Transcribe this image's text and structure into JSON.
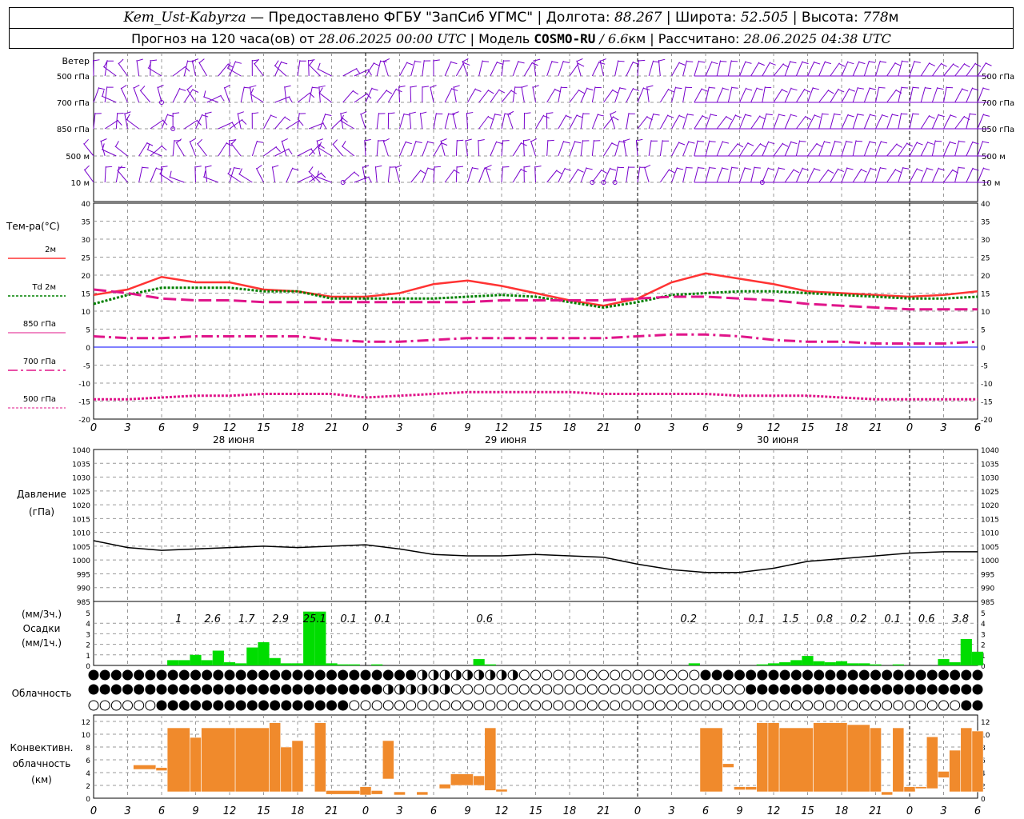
{
  "header": {
    "station": "Kem_Ust-Kabyrza",
    "provider": "Предоставлено ФГБУ \"ЗапСиб УГМС\"",
    "lon_label": "Долгота:",
    "lon": "88.267",
    "lat_label": "Широта:",
    "lat": "52.505",
    "alt_label": "Высота:",
    "alt": "778",
    "alt_unit": "м",
    "forecast_label": "Прогноз на 120 часа(ов) от",
    "forecast_from": "28.06.2025 00:00 UTC",
    "model_label": "Модель",
    "model": "COSMO-RU",
    "model_res": "/ 6.6",
    "model_res_unit": "км",
    "calc_label": "Рассчитано:",
    "calc_time": "28.06.2025 04:38 UTC"
  },
  "colors": {
    "t2m": "#ff3333",
    "td": "#008000",
    "t850": "#e0158a",
    "t700": "#e0158a",
    "t500": "#e0158a",
    "pressure": "#000000",
    "precip": "#00dd00",
    "convective": "#f08a2c",
    "wind": "#7700cc",
    "zero": "#0000ff"
  },
  "hours": [
    "0",
    "3",
    "6",
    "9",
    "12",
    "15",
    "18",
    "21",
    "0",
    "3",
    "6",
    "9",
    "12",
    "15",
    "18",
    "21",
    "0",
    "3",
    "6",
    "9",
    "12",
    "15",
    "18",
    "21",
    "0",
    "3",
    "6"
  ],
  "days": [
    "28 июня",
    "29 июня",
    "30 июня"
  ],
  "wind": {
    "title": "Ветер",
    "levels": [
      "500 гПа",
      "700 гПа",
      "850 гПа",
      "500 м",
      "10  м"
    ]
  },
  "temp": {
    "title": "Тем-ра(°C)",
    "legend": [
      "2м",
      "Td  2м",
      "850 гПа",
      "700 гПа",
      "500 гПа"
    ],
    "ticks": [
      "40",
      "35",
      "30",
      "25",
      "20",
      "15",
      "10",
      "5",
      "0",
      "-5",
      "-10",
      "-15",
      "-20"
    ]
  },
  "pressure": {
    "title1": "Давление",
    "title2": "(гПа)",
    "ticks": [
      "1040",
      "1035",
      "1030",
      "1025",
      "1020",
      "1015",
      "1010",
      "1005",
      "1000",
      "995",
      "990",
      "985"
    ]
  },
  "precip": {
    "title1": "(мм/3ч.)",
    "title2": "Осадки",
    "title3": "(мм/1ч.)",
    "ticks": [
      "5",
      "4",
      "3",
      "2",
      "1",
      "0"
    ],
    "totals": [
      {
        "h": 7.5,
        "v": "1"
      },
      {
        "h": 10.5,
        "v": "2.6"
      },
      {
        "h": 13.5,
        "v": "1.7"
      },
      {
        "h": 16.5,
        "v": "2.9"
      },
      {
        "h": 19.5,
        "v": "25.1"
      },
      {
        "h": 22.5,
        "v": "0.1"
      },
      {
        "h": 25.5,
        "v": "0.1"
      },
      {
        "h": 34.5,
        "v": "0.6"
      },
      {
        "h": 52.5,
        "v": "0.2"
      },
      {
        "h": 58.5,
        "v": "0.1"
      },
      {
        "h": 61.5,
        "v": "1.5"
      },
      {
        "h": 64.5,
        "v": "0.8"
      },
      {
        "h": 67.5,
        "v": "0.2"
      },
      {
        "h": 70.5,
        "v": "0.1"
      },
      {
        "h": 73.5,
        "v": "0.6"
      },
      {
        "h": 76.5,
        "v": "3.8"
      }
    ]
  },
  "cloud": {
    "title": "Облачность"
  },
  "conv": {
    "title1": "Конвективн.",
    "title2": "облачность",
    "title3": "(км)",
    "ticks": [
      "12",
      "10",
      "8",
      "6",
      "4",
      "2",
      "0"
    ]
  },
  "chart_data": [
    {
      "type": "line",
      "name": "temperature",
      "x_hours": [
        0,
        3,
        6,
        9,
        12,
        15,
        18,
        21,
        24,
        27,
        30,
        33,
        36,
        39,
        42,
        45,
        48,
        51,
        54,
        57,
        60,
        63,
        66,
        69,
        72,
        75,
        78
      ],
      "ylim": [
        -20,
        40
      ],
      "series": [
        {
          "name": "2м",
          "values": [
            14.5,
            16,
            19.5,
            18,
            18,
            16,
            15.5,
            14,
            14,
            15,
            17.5,
            18.5,
            17,
            15,
            13,
            11.5,
            13.5,
            18,
            20.5,
            19,
            17.5,
            15.5,
            15,
            14.5,
            14,
            14.5,
            15.5
          ]
        },
        {
          "name": "Td 2м",
          "values": [
            12,
            14.5,
            16.5,
            16.5,
            16.5,
            15.5,
            15.5,
            13.5,
            13.5,
            13.5,
            13.5,
            14,
            14.5,
            14,
            12.5,
            11,
            12.5,
            14.5,
            15,
            15.5,
            15.5,
            15,
            14.5,
            14,
            13.5,
            13.5,
            14
          ]
        },
        {
          "name": "850 гПа",
          "values": [
            16,
            15,
            13.5,
            13,
            13,
            12.5,
            12.5,
            12.5,
            12.5,
            12.5,
            12.5,
            12.5,
            13,
            13,
            13,
            13,
            13.5,
            14,
            14,
            13.5,
            13,
            12,
            11.5,
            11,
            10.5,
            10.5,
            10.5
          ]
        },
        {
          "name": "700 гПа",
          "values": [
            3,
            2.5,
            2.5,
            3,
            3,
            3,
            3,
            2,
            1.5,
            1.5,
            2,
            2.5,
            2.5,
            2.5,
            2.5,
            2.5,
            3,
            3.5,
            3.5,
            3,
            2,
            1.5,
            1.5,
            1,
            1,
            1,
            1.5
          ]
        },
        {
          "name": "500 гПа",
          "values": [
            -14.5,
            -14.5,
            -14,
            -13.5,
            -13.5,
            -13,
            -13,
            -13,
            -14,
            -13.5,
            -13,
            -12.5,
            -12.5,
            -12.5,
            -12.5,
            -13,
            -13,
            -13,
            -13,
            -13.5,
            -13.5,
            -13.5,
            -14,
            -14.5,
            -14.5,
            -14.5,
            -14.5
          ]
        }
      ]
    },
    {
      "type": "line",
      "name": "pressure",
      "x_hours": [
        0,
        3,
        6,
        9,
        12,
        15,
        18,
        21,
        24,
        27,
        30,
        33,
        36,
        39,
        42,
        45,
        48,
        51,
        54,
        57,
        60,
        63,
        66,
        69,
        72,
        75,
        78
      ],
      "ylim": [
        985,
        1040
      ],
      "values": [
        1007,
        1004.5,
        1003.5,
        1004,
        1004.5,
        1005,
        1004.5,
        1005,
        1005.5,
        1004,
        1002,
        1001.5,
        1001.5,
        1002,
        1001.5,
        1001,
        998.5,
        996.5,
        995.5,
        995.5,
        997,
        999.5,
        1000.5,
        1001.5,
        1002.5,
        1003,
        1003
      ]
    },
    {
      "type": "bar",
      "name": "precipitation (мм/1ч.)",
      "x_hours": [
        7,
        8,
        9,
        10,
        11,
        12,
        13,
        14,
        15,
        16,
        17,
        18,
        19,
        20,
        21,
        22,
        23,
        25,
        34,
        35,
        53,
        59,
        60,
        61,
        62,
        63,
        64,
        65,
        66,
        67,
        68,
        69,
        71,
        75,
        76,
        77,
        78
      ],
      "ylim": [
        0,
        5
      ],
      "values": [
        0.5,
        0.5,
        1,
        0.5,
        1.4,
        0.3,
        0.2,
        1.7,
        2.2,
        0.7,
        0.2,
        0.2,
        5.1,
        5.1,
        0.2,
        0.1,
        0.1,
        0.1,
        0.6,
        0.1,
        0.2,
        0.1,
        0.2,
        0.3,
        0.5,
        0.9,
        0.4,
        0.3,
        0.4,
        0.2,
        0.2,
        0.1,
        0.1,
        0.6,
        0.3,
        2.5,
        1.3
      ]
    },
    {
      "type": "bar",
      "name": "convective cloud (км)",
      "ylim": [
        0,
        12
      ],
      "bars": [
        [
          3.5,
          5.5,
          5.2,
          4.5
        ],
        [
          5.5,
          6.5,
          4.8,
          4.3
        ],
        [
          6.5,
          8.5,
          11,
          1
        ],
        [
          8.5,
          9.5,
          9.5,
          1
        ],
        [
          9.5,
          12.5,
          11,
          1
        ],
        [
          12.5,
          15.5,
          11,
          1
        ],
        [
          15.5,
          16.5,
          11.8,
          1
        ],
        [
          16.5,
          17.5,
          8,
          1
        ],
        [
          17.5,
          18.5,
          9,
          1
        ],
        [
          19.5,
          20.5,
          11.8,
          1
        ],
        [
          20.5,
          23.5,
          1.2,
          0.6
        ],
        [
          23.5,
          24.5,
          1.8,
          0.5
        ],
        [
          24.5,
          25.5,
          1.2,
          0.6
        ],
        [
          25.5,
          26.5,
          9,
          3
        ],
        [
          26.5,
          27.5,
          1,
          0.5
        ],
        [
          28.5,
          29.5,
          1,
          0.5
        ],
        [
          30.5,
          31.5,
          2.2,
          1.5
        ],
        [
          31.5,
          33.5,
          3.8,
          2
        ],
        [
          33.5,
          34.5,
          3.5,
          2
        ],
        [
          34.5,
          35.5,
          11,
          1.2
        ],
        [
          35.5,
          36.5,
          1.4,
          1
        ],
        [
          53.5,
          55.5,
          11,
          1
        ],
        [
          55.5,
          56.5,
          5.4,
          4.8
        ],
        [
          56.5,
          57.5,
          1.8,
          1.3
        ],
        [
          57.5,
          58.5,
          1.8,
          1.3
        ],
        [
          58.5,
          59.5,
          11.8,
          1
        ],
        [
          59.5,
          60.5,
          11.8,
          1
        ],
        [
          60.5,
          63.5,
          11,
          1
        ],
        [
          63.5,
          66.5,
          11.8,
          1
        ],
        [
          66.5,
          68.5,
          11.5,
          1
        ],
        [
          68.5,
          69.5,
          11,
          1
        ],
        [
          69.5,
          70.5,
          1,
          0.5
        ],
        [
          70.5,
          71.5,
          11,
          1
        ],
        [
          71.5,
          72.5,
          1.8,
          1
        ],
        [
          72.5,
          73.5,
          1.8,
          1.5
        ],
        [
          73.5,
          74.5,
          9.6,
          1.5
        ],
        [
          74.5,
          75.5,
          4.2,
          3.2
        ],
        [
          75.5,
          76.5,
          7.5,
          1
        ],
        [
          76.5,
          77.5,
          11,
          1
        ],
        [
          77.5,
          78.5,
          10.5,
          1
        ]
      ]
    }
  ]
}
